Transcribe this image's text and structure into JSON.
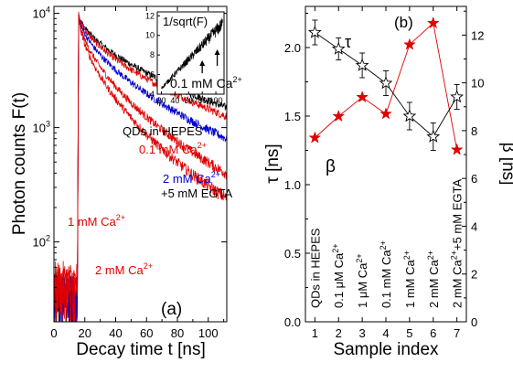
{
  "chart_data": [
    {
      "panel_label": "(a)",
      "type": "line",
      "xlabel": "Decay time t [ns]",
      "ylabel": "Photon counts F(t)",
      "yscale": "log",
      "xlim": [
        0,
        112
      ],
      "ylim": [
        20,
        11500
      ],
      "xticks": [
        0,
        20,
        40,
        60,
        80,
        100
      ],
      "yticks": [
        {
          "value": 100,
          "label_base": "10",
          "label_exp": "2"
        },
        {
          "value": 1000,
          "label_base": "10",
          "label_exp": "3"
        },
        {
          "value": 10000,
          "label_base": "10",
          "label_exp": "4"
        }
      ],
      "curve_model": {
        "t0": 16,
        "stretch": [
          0.6,
          0.75
        ]
      },
      "series_labels": {
        "hepes": {
          "text": "QDs in HEPES",
          "color": "#000000"
        },
        "c01": {
          "text": "0.1 mM Ca",
          "sup": "2+",
          "color": "#e00000"
        },
        "egta_line1": {
          "text": "2 mM Ca",
          "sup": "2+",
          "color": "#0000d0"
        },
        "egta_line2": {
          "text": "+5 mM EGTA",
          "color": "#0000d0"
        },
        "c1": {
          "text": "1 mM Ca",
          "sup": "2+",
          "color": "#e00000"
        },
        "c2": {
          "text": "2 mM Ca",
          "sup": "2+",
          "color": "#e00000"
        }
      },
      "series": [
        {
          "key": "hepes",
          "color": "#000000",
          "baseline": 30,
          "peak": 10000,
          "tau": 32,
          "end": 62
        },
        {
          "key": "c01",
          "color": "#e00000",
          "baseline": 38,
          "peak": 9800,
          "tau": 28,
          "end": 58
        },
        {
          "key": "egta",
          "color": "#0000d0",
          "baseline": 33,
          "peak": 9700,
          "tau": 20,
          "end": 58
        },
        {
          "key": "c1",
          "color": "#e00000",
          "baseline": 44,
          "peak": 9600,
          "tau": 13,
          "end": 50
        },
        {
          "key": "c2",
          "color": "#e00000",
          "baseline": 36,
          "peak": 9500,
          "tau": 10,
          "end": 48
        }
      ],
      "inset": {
        "ylabel_text": "1/sqrt(F)",
        "annotation": {
          "text": "0.1 mM Ca",
          "sup": "2+"
        },
        "xlim": [
          14,
          112
        ],
        "ylim": [
          4,
          12.4
        ],
        "xticks": [
          20,
          40,
          60,
          80,
          100
        ],
        "yticks": [
          4,
          6,
          8,
          10,
          12
        ],
        "line": {
          "x0": 20,
          "y0": 4.6,
          "x1": 110,
          "y1": 11.2
        },
        "arrows_x": [
          80,
          102
        ]
      }
    },
    {
      "panel_label": "(b)",
      "type": "line",
      "xlabel": "Sample index",
      "ylabel_left": "τ [ns]",
      "ylabel_right": "β [ns]",
      "xlim": [
        0.6,
        7.4
      ],
      "ylim_left": [
        0.0,
        2.3
      ],
      "ylim_right": [
        0,
        13.2
      ],
      "xticks": [
        1,
        2,
        3,
        4,
        5,
        6,
        7
      ],
      "yticks_left": [
        "0.0",
        "0.5",
        "1.0",
        "1.5",
        "2.0"
      ],
      "yticks_right": [
        0,
        2,
        4,
        6,
        8,
        10,
        12
      ],
      "x": [
        1,
        2,
        3,
        4,
        5,
        6,
        7
      ],
      "tau_series": {
        "label": "τ",
        "color": "#000000",
        "values": [
          2.11,
          1.99,
          1.87,
          1.74,
          1.5,
          1.35,
          1.64
        ],
        "errors": [
          0.09,
          0.08,
          0.09,
          0.09,
          0.1,
          0.1,
          0.09
        ]
      },
      "beta_series": {
        "label": "β",
        "color": "#e00000",
        "values": [
          7.7,
          8.6,
          9.4,
          8.7,
          11.6,
          12.5,
          7.2
        ]
      },
      "sample_labels": [
        {
          "text": "QDs in HEPES"
        },
        {
          "text": "0.1 μM Ca",
          "sup": "2+"
        },
        {
          "text": "1 μM Ca",
          "sup": "2+"
        },
        {
          "text": "0.1 mM Ca",
          "sup": "2+"
        },
        {
          "text": "1 mM Ca",
          "sup": "2+"
        },
        {
          "text": "2 mM Ca",
          "sup": "2+"
        },
        {
          "text": "2 mM Ca",
          "sup": "2+",
          "tail": "+5 mM EGTA"
        }
      ]
    }
  ]
}
